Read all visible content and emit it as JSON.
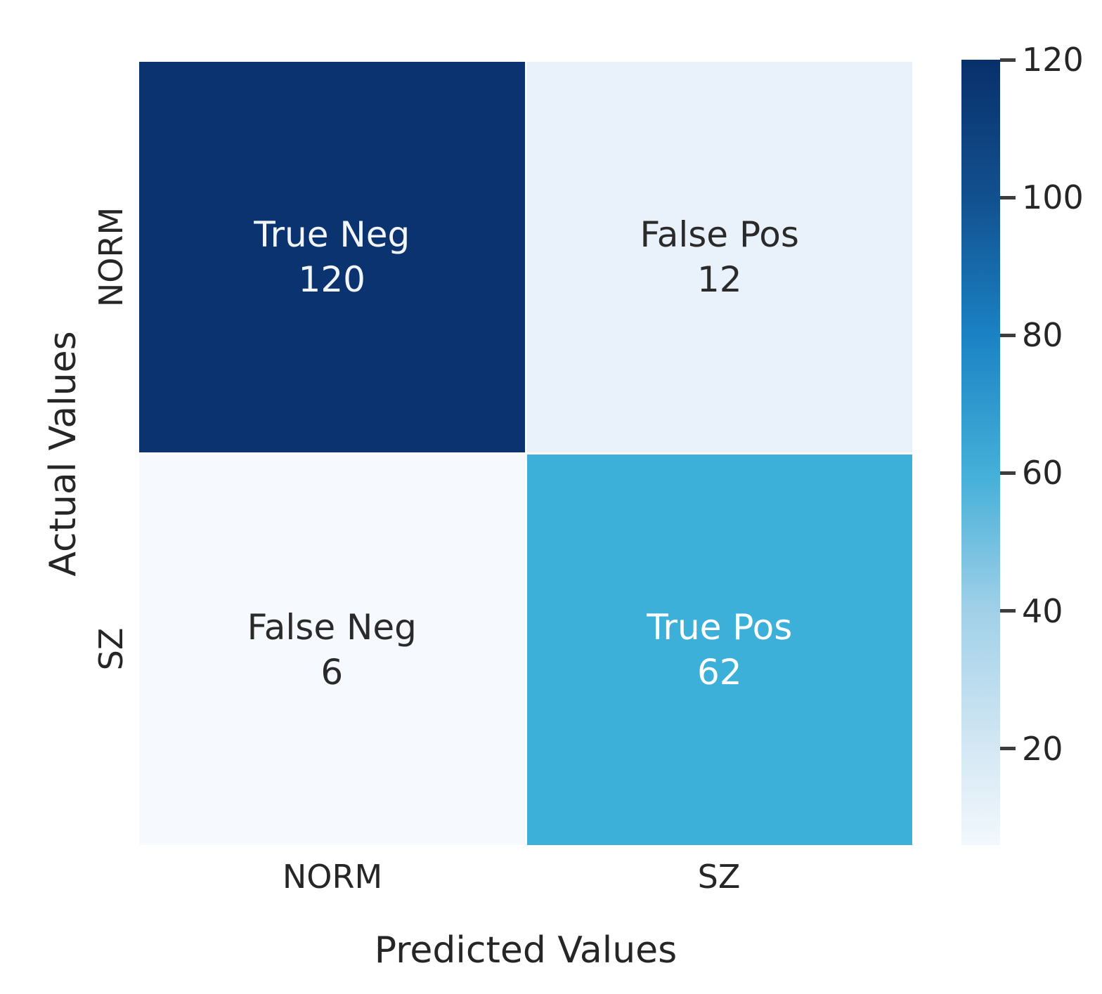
{
  "chart_data": {
    "type": "heatmap",
    "title": "",
    "xlabel": "Predicted Values",
    "ylabel": "Actual Values",
    "x_categories": [
      "NORM",
      "SZ"
    ],
    "y_categories": [
      "NORM",
      "SZ"
    ],
    "cells": [
      {
        "row": "NORM",
        "col": "NORM",
        "label": "True Neg",
        "value": 120,
        "bg": "#0a336f",
        "text_color": "#f2f6fb"
      },
      {
        "row": "NORM",
        "col": "SZ",
        "label": "False Pos",
        "value": 12,
        "bg": "#e9f1fa",
        "text_color": "#2a2a2a"
      },
      {
        "row": "SZ",
        "col": "NORM",
        "label": "False Neg",
        "value": 6,
        "bg": "#f6f9fd",
        "text_color": "#2a2a2a"
      },
      {
        "row": "SZ",
        "col": "SZ",
        "label": "True Pos",
        "value": 62,
        "bg": "#3db0da",
        "text_color": "#ffffff"
      }
    ],
    "colorbar": {
      "colormap": "Blues",
      "vmin": 6,
      "vmax": 120,
      "ticks": [
        120,
        100,
        80,
        60,
        40,
        20
      ]
    },
    "layout": {
      "grid": false,
      "legend": "colorbar-right"
    }
  },
  "colors": {
    "background": "#ffffff",
    "text": "#262626",
    "cmap_high": "#08306b",
    "cmap_low": "#f2f8fd"
  }
}
